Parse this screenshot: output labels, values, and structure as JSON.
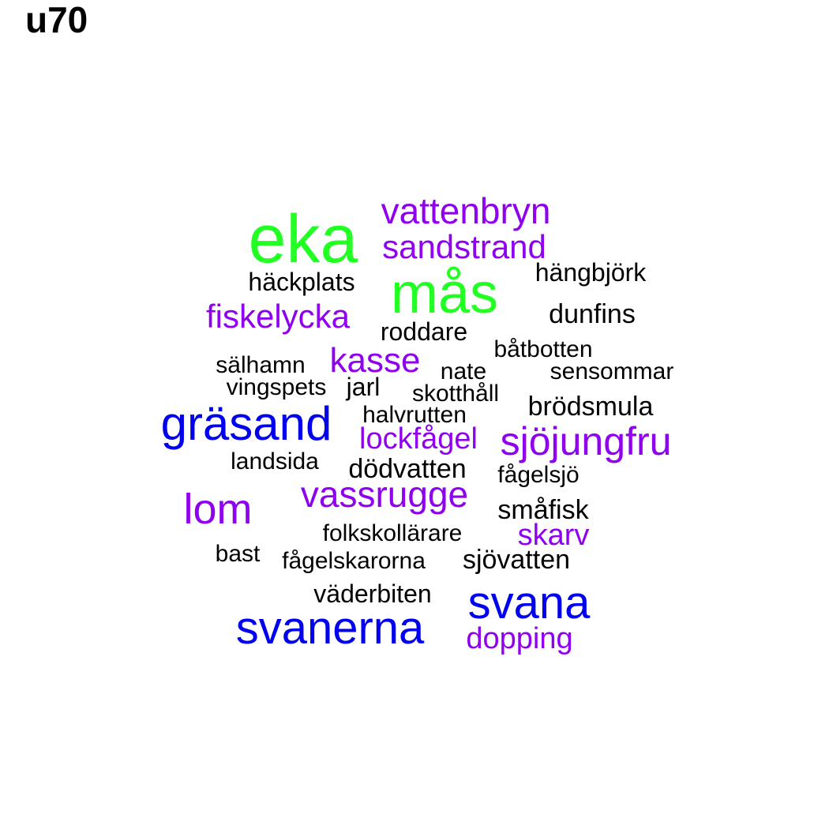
{
  "title": "u70",
  "palette": {
    "green": "#22ff22",
    "blue": "#0000ee",
    "purple": "#8f00ee",
    "black": "#000000"
  },
  "words": [
    {
      "text": "eka",
      "color": "green"
    },
    {
      "text": "mås",
      "color": "green"
    },
    {
      "text": "vattenbryn",
      "color": "purple"
    },
    {
      "text": "sandstrand",
      "color": "purple"
    },
    {
      "text": "hängbjörk",
      "color": "black"
    },
    {
      "text": "häckplats",
      "color": "black"
    },
    {
      "text": "fiskelycka",
      "color": "purple"
    },
    {
      "text": "dunfins",
      "color": "black"
    },
    {
      "text": "roddare",
      "color": "black"
    },
    {
      "text": "båtbotten",
      "color": "black"
    },
    {
      "text": "kasse",
      "color": "purple"
    },
    {
      "text": "sälhamn",
      "color": "black"
    },
    {
      "text": "nate",
      "color": "black"
    },
    {
      "text": "sensommar",
      "color": "black"
    },
    {
      "text": "vingspets",
      "color": "black"
    },
    {
      "text": "jarl",
      "color": "black"
    },
    {
      "text": "skotthåll",
      "color": "black"
    },
    {
      "text": "brödsmula",
      "color": "black"
    },
    {
      "text": "gräsand",
      "color": "blue"
    },
    {
      "text": "halvrutten",
      "color": "black"
    },
    {
      "text": "lockfågel",
      "color": "purple"
    },
    {
      "text": "sjöjungfru",
      "color": "purple"
    },
    {
      "text": "landsida",
      "color": "black"
    },
    {
      "text": "dödvatten",
      "color": "black"
    },
    {
      "text": "fågelsjö",
      "color": "black"
    },
    {
      "text": "vassrugge",
      "color": "purple"
    },
    {
      "text": "lom",
      "color": "purple"
    },
    {
      "text": "småfisk",
      "color": "black"
    },
    {
      "text": "folkskollärare",
      "color": "black"
    },
    {
      "text": "skarv",
      "color": "purple"
    },
    {
      "text": "bast",
      "color": "black"
    },
    {
      "text": "fågelskarorna",
      "color": "black"
    },
    {
      "text": "sjövatten",
      "color": "black"
    },
    {
      "text": "väderbiten",
      "color": "black"
    },
    {
      "text": "svana",
      "color": "blue"
    },
    {
      "text": "svanerna",
      "color": "blue"
    },
    {
      "text": "dopping",
      "color": "purple"
    }
  ]
}
